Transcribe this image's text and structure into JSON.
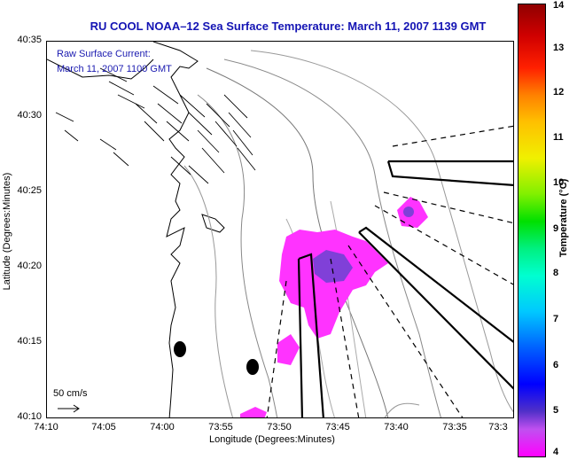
{
  "title": "RU COOL  NOAA–12  Sea Surface Temperature:  March 11, 2007 1139 GMT",
  "overlay_note": {
    "line1": "Raw Surface Current:",
    "line2": "March 11, 2007 1100 GMT"
  },
  "axes": {
    "x_title": "Longitude (Degrees:Minutes)",
    "y_title": "Latitude (Degrees:Minutes)",
    "x_ticks": [
      "74:10",
      "74:05",
      "74:00",
      "73:55",
      "73:50",
      "73:45",
      "73:40",
      "73:35",
      "73:3"
    ],
    "y_ticks": [
      "40:35",
      "40:30",
      "40:25",
      "40:20",
      "40:15",
      "40:10"
    ]
  },
  "scale_bar": {
    "label": "50 cm/s"
  },
  "colorbar": {
    "title": "Temperature (°C)",
    "ticks": [
      "14",
      "13",
      "12",
      "11",
      "10",
      "9",
      "8",
      "7",
      "6",
      "5",
      "4"
    ]
  },
  "colors": {
    "title": "#1414b4",
    "note": "#1a1ab0",
    "warm_patch": "#ff33ff",
    "core_patch": "#8040d8"
  }
}
